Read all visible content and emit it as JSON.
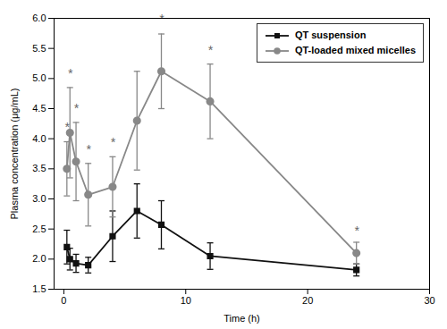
{
  "chart_data": {
    "type": "line",
    "x": [
      0.25,
      0.5,
      1,
      2,
      4,
      6,
      8,
      12,
      24
    ],
    "series": [
      {
        "name": "QT suspension",
        "color": "#111111",
        "marker": "square",
        "values": [
          2.2,
          2.0,
          1.93,
          1.9,
          2.38,
          2.8,
          2.57,
          2.05,
          1.82
        ],
        "error": [
          0.28,
          0.18,
          0.15,
          0.13,
          0.42,
          0.45,
          0.4,
          0.22,
          0.1
        ]
      },
      {
        "name": "QT-loaded mixed micelles",
        "color": "#888888",
        "marker": "circle",
        "values": [
          3.5,
          4.1,
          3.62,
          3.07,
          3.2,
          4.3,
          5.12,
          4.62,
          2.1
        ],
        "error": [
          0.45,
          0.75,
          0.65,
          0.52,
          0.5,
          0.82,
          0.62,
          0.62,
          0.18
        ]
      }
    ],
    "annotations": [
      {
        "text": "*",
        "x": 0.25,
        "y": 4.1,
        "color": "#666666"
      },
      {
        "text": "*",
        "x": 0.5,
        "y": 5.0,
        "color": "#666666"
      },
      {
        "text": "*",
        "x": 1,
        "y": 4.42,
        "color": "#666666"
      },
      {
        "text": "*",
        "x": 2,
        "y": 3.74,
        "color": "#666666"
      },
      {
        "text": "*",
        "x": 4,
        "y": 3.85,
        "color": "#666666"
      },
      {
        "text": "*",
        "x": 8,
        "y": 5.9,
        "color": "#666666"
      },
      {
        "text": "*",
        "x": 12,
        "y": 5.38,
        "color": "#666666"
      },
      {
        "text": "*",
        "x": 24,
        "y": 2.38,
        "color": "#666666"
      }
    ],
    "xlabel": "Time (h)",
    "ylabel": "Plasma concentration (μg/mL)",
    "xlim": [
      -0.8,
      30
    ],
    "ylim": [
      1.5,
      6.0
    ],
    "xticks": [
      0,
      10,
      20,
      30
    ],
    "yticks": [
      1.5,
      {
        "value": 2,
        "label": "2.0"
      },
      2.5,
      {
        "value": 3,
        "label": "3.0"
      },
      3.5,
      {
        "value": 4,
        "label": "4.0"
      },
      4.5,
      {
        "value": 5,
        "label": "5.0"
      },
      5.5,
      {
        "value": 6,
        "label": "6.0"
      }
    ],
    "legend": "upper right",
    "grid": false
  }
}
